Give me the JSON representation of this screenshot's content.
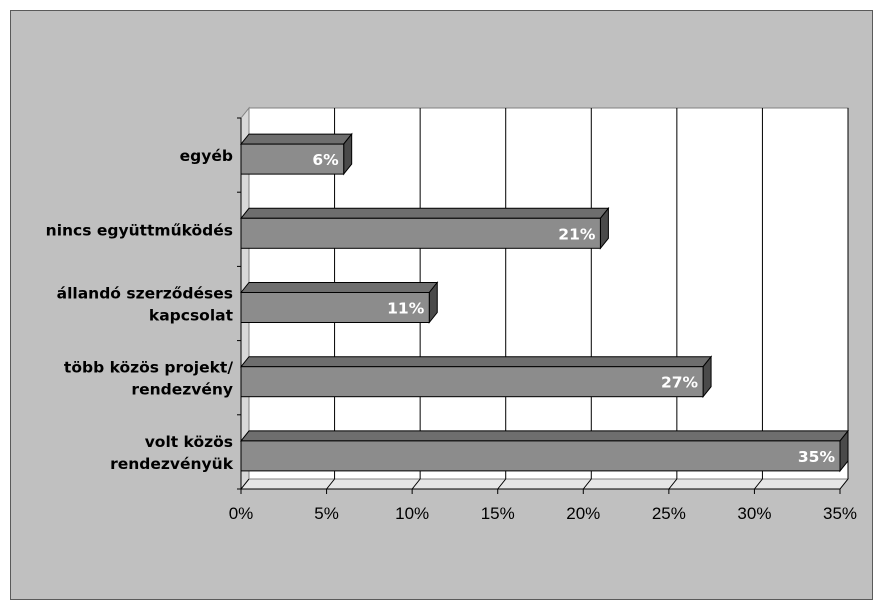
{
  "chart_data": {
    "type": "bar",
    "orientation": "horizontal",
    "three_d": true,
    "categories": [
      [
        "volt közös",
        "rendezvényük"
      ],
      [
        "több közös projekt/",
        "rendezvény"
      ],
      [
        "állandó szerződéses",
        "kapcsolat"
      ],
      [
        "nincs együttműködés"
      ],
      [
        "egyéb"
      ]
    ],
    "values": [
      35,
      27,
      11,
      21,
      6
    ],
    "data_labels": [
      "35%",
      "27%",
      "11%",
      "21%",
      "6%"
    ],
    "xlim": [
      0,
      35
    ],
    "xticks": [
      0,
      5,
      10,
      15,
      20,
      25,
      30,
      35
    ],
    "xtick_labels": [
      "0%",
      "5%",
      "10%",
      "15%",
      "20%",
      "25%",
      "30%",
      "35%"
    ],
    "grid": true,
    "legend": "none",
    "colors": {
      "bar_front": "#8c8c8c",
      "bar_top": "#6e6e6e",
      "bar_side": "#4a4a4a",
      "background": "#c0c0c0",
      "plot_wall": "#ffffff",
      "grid": "#000000"
    }
  }
}
